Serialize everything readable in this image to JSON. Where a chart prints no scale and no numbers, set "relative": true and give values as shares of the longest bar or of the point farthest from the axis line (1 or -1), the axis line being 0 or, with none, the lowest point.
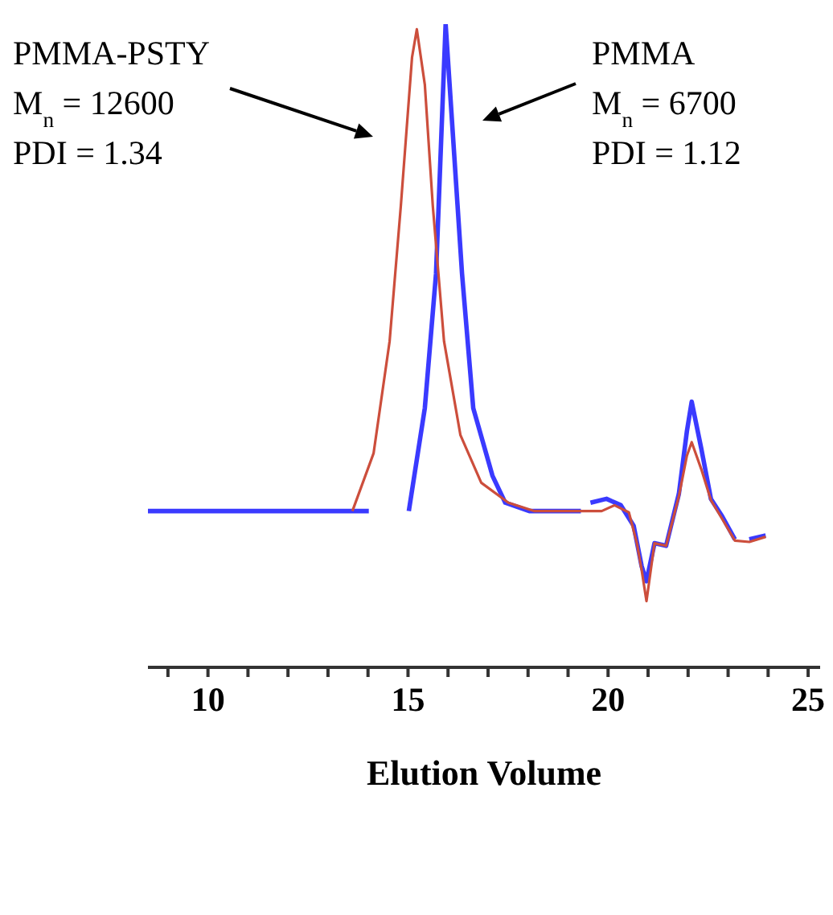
{
  "chart_data": {
    "type": "line",
    "relative": true,
    "xlabel": "Elution Volume",
    "xlim": [
      8.5,
      25.3
    ],
    "xticks": [
      {
        "value": 9,
        "label": null
      },
      10,
      {
        "value": 11,
        "label": null
      },
      {
        "value": 12,
        "label": null
      },
      {
        "value": 13,
        "label": null
      },
      {
        "value": 14,
        "label": null
      },
      15,
      {
        "value": 16,
        "label": null
      },
      {
        "value": 17,
        "label": null
      },
      {
        "value": 18,
        "label": null
      },
      {
        "value": 19,
        "label": null
      },
      20,
      {
        "value": 21,
        "label": null
      },
      {
        "value": 22,
        "label": null
      },
      {
        "value": 23,
        "label": null
      },
      {
        "value": 24,
        "label": null
      },
      25
    ],
    "series": [
      {
        "color": "#3a3aff",
        "x": [
          8.5,
          14.02,
          14.5,
          15.02,
          15.42,
          15.7,
          15.94,
          16.35,
          16.63,
          17.11,
          17.43,
          18.03,
          19.32,
          19.45,
          19.56,
          19.96,
          20.32,
          20.64,
          20.84,
          20.96,
          21.16,
          21.45,
          21.77,
          21.97,
          22.09,
          22.33,
          22.57,
          22.85,
          23.17,
          23.3,
          23.53,
          23.94
        ],
        "values": [
          0.243,
          0.243,
          null,
          0.243,
          0.403,
          0.612,
          1.0,
          0.612,
          0.403,
          0.298,
          0.256,
          0.243,
          0.243,
          null,
          0.256,
          0.262,
          0.252,
          0.22,
          0.157,
          0.134,
          0.193,
          0.189,
          0.27,
          0.367,
          0.413,
          0.34,
          0.262,
          0.235,
          0.199,
          null,
          0.199,
          0.205
        ]
      },
      {
        "color": "#cc4e3c",
        "x": [
          13.61,
          14.14,
          14.54,
          14.82,
          15.1,
          15.22,
          15.42,
          15.62,
          15.9,
          16.31,
          16.83,
          17.51,
          18.15,
          19.84,
          20.16,
          20.52,
          20.72,
          20.84,
          20.96,
          21.16,
          21.45,
          21.77,
          21.97,
          22.09,
          22.33,
          22.57,
          22.85,
          23.17,
          23.53,
          23.94
        ],
        "values": [
          0.243,
          0.333,
          0.507,
          0.717,
          0.948,
          0.992,
          0.906,
          0.717,
          0.507,
          0.361,
          0.287,
          0.256,
          0.243,
          0.243,
          0.252,
          0.241,
          0.193,
          0.151,
          0.103,
          0.193,
          0.189,
          0.266,
          0.329,
          0.35,
          0.308,
          0.26,
          0.231,
          0.197,
          0.195,
          0.203
        ]
      }
    ],
    "annotations": [
      "PMMA-PSTY\nM$_{n}$ = 12600\nPDI = 1.34",
      "PMMA\nM$_{n}$ = 6700\nPDI = 1.12"
    ]
  }
}
